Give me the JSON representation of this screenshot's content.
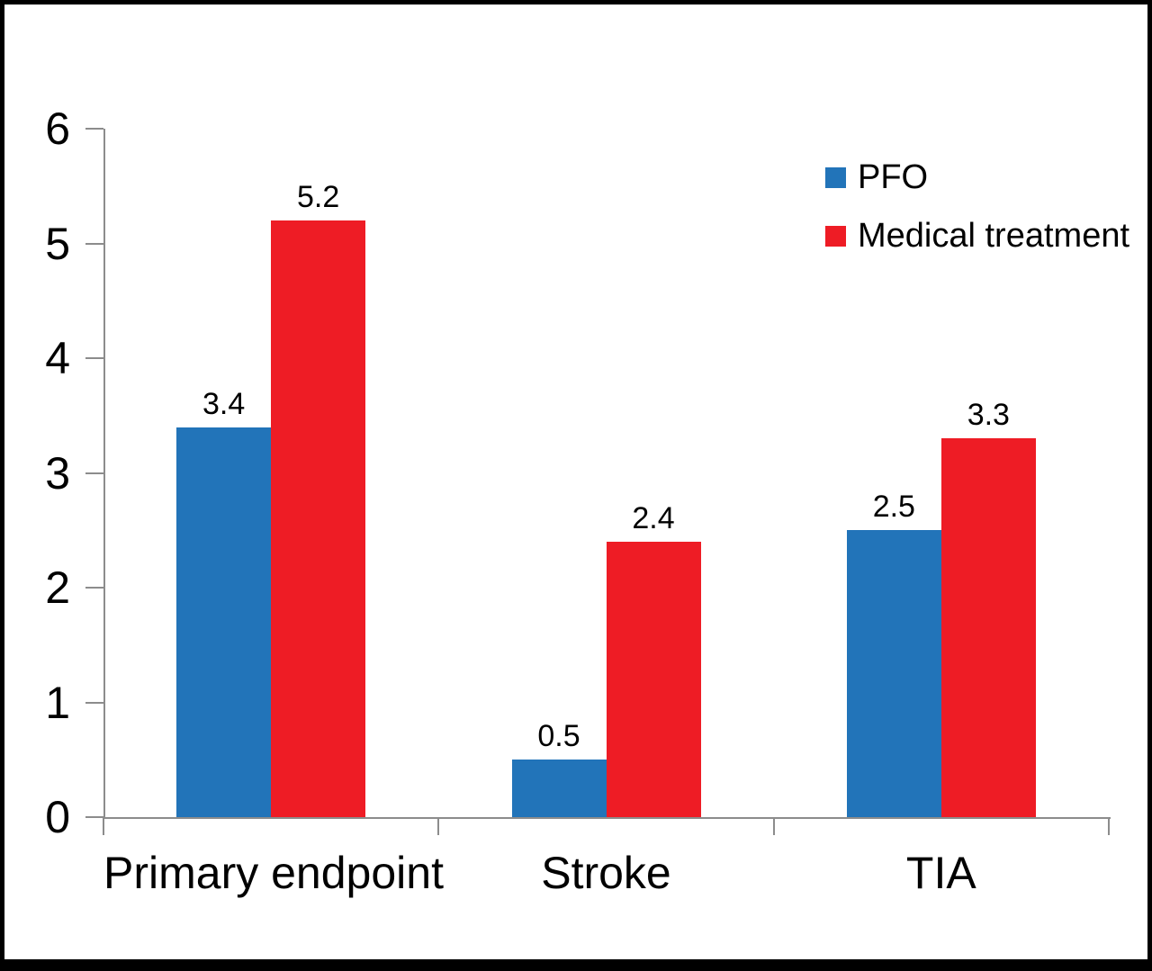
{
  "chart_data": {
    "type": "bar",
    "categories": [
      "Primary endpoint",
      "Stroke",
      "TIA"
    ],
    "series": [
      {
        "name": "PFO",
        "color": "#2274B9",
        "values": [
          3.4,
          0.5,
          2.5
        ]
      },
      {
        "name": "Medical treatment",
        "color": "#EE1C25",
        "values": [
          5.2,
          2.4,
          3.3
        ]
      }
    ],
    "value_labels": {
      "PFO": [
        "3.4",
        "0.5",
        "2.5"
      ],
      "Medical treatment": [
        "5.2",
        "2.4",
        "3.3"
      ]
    },
    "yticks": [
      0,
      1,
      2,
      3,
      4,
      5,
      6
    ],
    "ylim": [
      0,
      6
    ],
    "grid": false,
    "legend_position": "top-right",
    "axis_color": "#8C8C8C",
    "label_color": "#000000",
    "background": "#FFFFFF",
    "border_color": "#000000"
  }
}
